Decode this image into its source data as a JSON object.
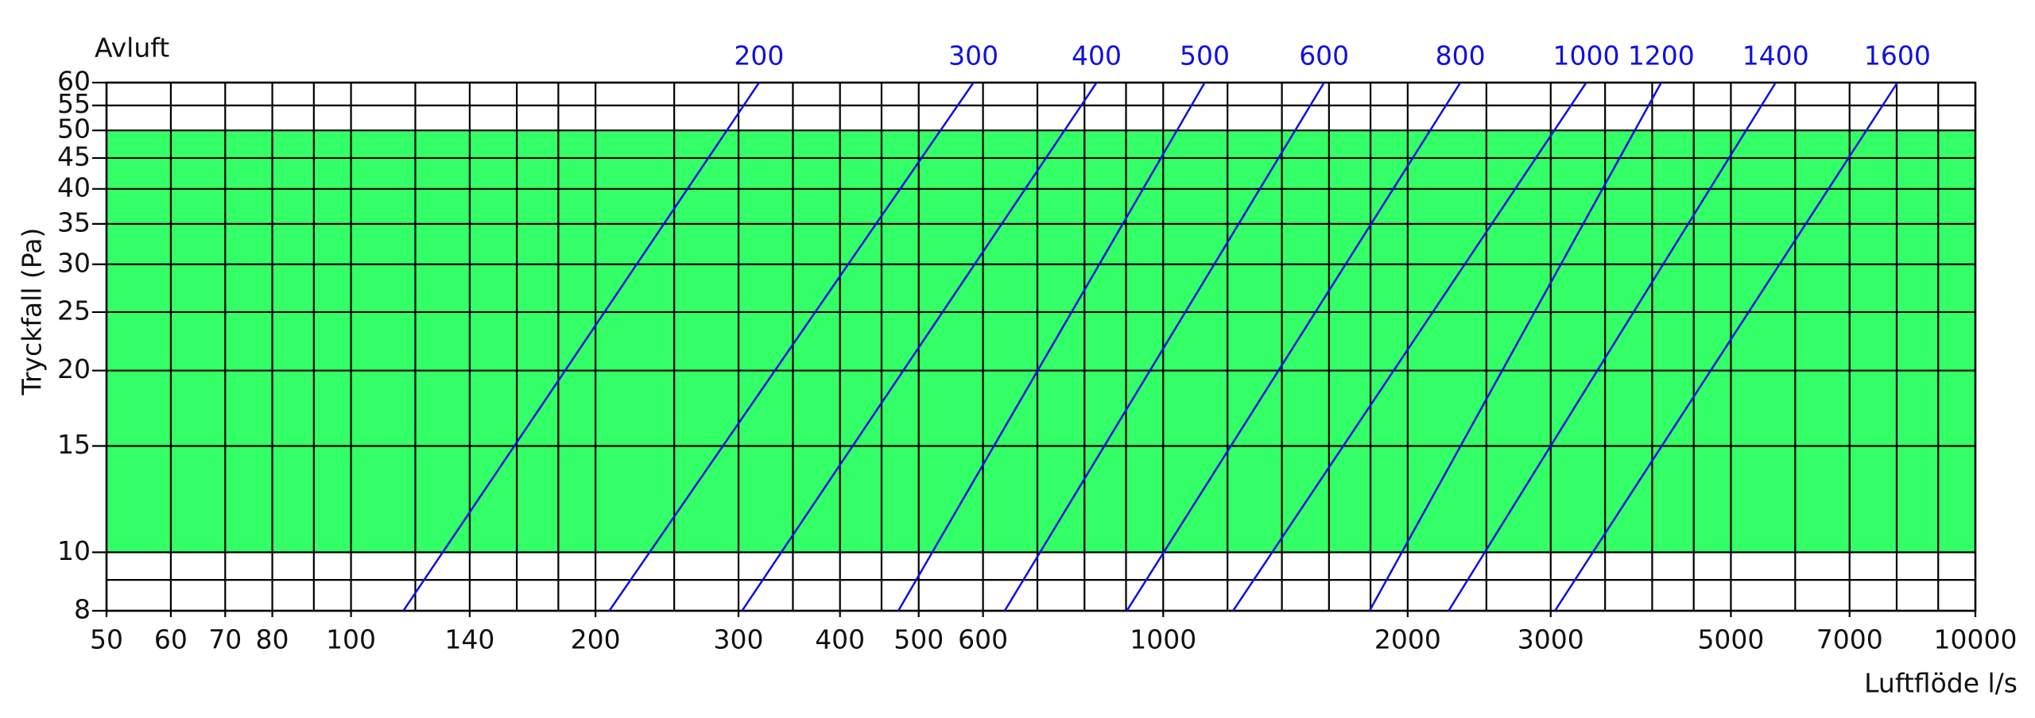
{
  "chart_data": {
    "type": "line",
    "title": "Avluft",
    "x_label": "Luftflöde l/s",
    "y_label": "Tryckfall (Pa)",
    "log_x": true,
    "log_y": true,
    "grid": true,
    "xlim": [
      50,
      10000
    ],
    "ylim": [
      8,
      60
    ],
    "xticks": [
      50,
      60,
      70,
      80,
      100,
      140,
      200,
      300,
      400,
      500,
      600,
      1000,
      2000,
      3000,
      5000,
      7000,
      10000
    ],
    "xminor": [
      90,
      120,
      160,
      180,
      250,
      350,
      450,
      700,
      800,
      900,
      1200,
      1400,
      1600,
      1800,
      2500,
      3500,
      4000,
      4500,
      6000,
      8000,
      9000
    ],
    "yticks": [
      8,
      10,
      15,
      20,
      25,
      30,
      35,
      40,
      45,
      50,
      55,
      60
    ],
    "yminor": [
      9
    ],
    "band": [
      10,
      50
    ],
    "band_color": "#33ff66",
    "series": [
      {
        "name": "200",
        "color": "#1010e0",
        "x": [
          116,
          318
        ],
        "values": [
          8,
          60
        ]
      },
      {
        "name": "300",
        "color": "#1010e0",
        "x": [
          208,
          584
        ],
        "values": [
          8,
          60
        ]
      },
      {
        "name": "400",
        "color": "#1010e0",
        "x": [
          303,
          828
        ],
        "values": [
          8,
          60
        ]
      },
      {
        "name": "500",
        "color": "#1010e0",
        "x": [
          472,
          1125
        ],
        "values": [
          8,
          60
        ]
      },
      {
        "name": "600",
        "color": "#1010e0",
        "x": [
          638,
          1578
        ],
        "values": [
          8,
          60
        ]
      },
      {
        "name": "800",
        "color": "#1010e0",
        "x": [
          902,
          2322
        ],
        "values": [
          8,
          60
        ]
      },
      {
        "name": "1000",
        "color": "#1010e0",
        "x": [
          1219,
          3318
        ],
        "values": [
          8,
          60
        ]
      },
      {
        "name": "1200",
        "color": "#1010e0",
        "x": [
          1795,
          4104
        ],
        "values": [
          8,
          60
        ]
      },
      {
        "name": "1400",
        "color": "#1010e0",
        "x": [
          2246,
          5677
        ],
        "values": [
          8,
          60
        ]
      },
      {
        "name": "1600",
        "color": "#1010e0",
        "x": [
          3036,
          8016
        ],
        "values": [
          8,
          60
        ]
      }
    ]
  }
}
